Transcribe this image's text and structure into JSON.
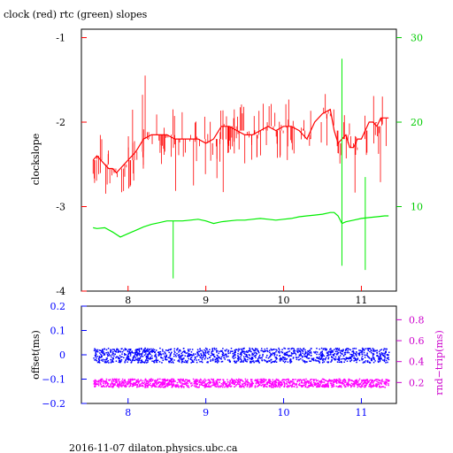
{
  "title": "clock (red) rtc (green) slopes",
  "footer": "2016-11-07 dilaton.physics.ubc.ca",
  "colors": {
    "clock": "#ff0000",
    "rtc": "#00ee00",
    "offset": "#0000ff",
    "rnd": "#ff00ff",
    "axis_red": "#ff0000",
    "axis_green": "#00cc00",
    "axis_blue": "#0000ff",
    "axis_magenta": "#cc00cc"
  },
  "chart_data": [
    {
      "type": "line",
      "ylabel": "clockslope",
      "xlim": [
        7.4,
        11.45
      ],
      "ylim": [
        -4,
        -0.9
      ],
      "y2lim": [
        0,
        31
      ],
      "xticks": [
        "8",
        "9",
        "10",
        "11"
      ],
      "xtick_values": [
        8,
        9,
        10,
        11
      ],
      "yticks": [
        "-1",
        "-2",
        "-3",
        "-4"
      ],
      "ytick_values": [
        -1,
        -2,
        -3,
        -4
      ],
      "y2ticks": [
        "30",
        "20",
        "10"
      ],
      "y2tick_values": [
        30,
        20,
        10
      ],
      "series": [
        {
          "axis": "left",
          "x": [
            7.55,
            7.6,
            7.65,
            7.7,
            7.75,
            7.8,
            7.85,
            7.9,
            7.95,
            8.0,
            8.1,
            8.2,
            8.3,
            8.4,
            8.5,
            8.6,
            8.7,
            8.8,
            8.9,
            9.0,
            9.1,
            9.2,
            9.3,
            9.4,
            9.5,
            9.6,
            9.7,
            9.8,
            9.9,
            10.0,
            10.1,
            10.2,
            10.3,
            10.4,
            10.5,
            10.6,
            10.65,
            10.7,
            10.75,
            10.8,
            10.85,
            10.9,
            10.95,
            11.0,
            11.05,
            11.1,
            11.15,
            11.2,
            11.25,
            11.3,
            11.35
          ],
          "values": [
            -2.45,
            -2.4,
            -2.45,
            -2.5,
            -2.55,
            -2.55,
            -2.6,
            -2.55,
            -2.5,
            -2.45,
            -2.35,
            -2.2,
            -2.15,
            -2.15,
            -2.15,
            -2.2,
            -2.2,
            -2.2,
            -2.2,
            -2.25,
            -2.2,
            -2.05,
            -2.05,
            -2.1,
            -2.15,
            -2.15,
            -2.1,
            -2.05,
            -2.1,
            -2.05,
            -2.05,
            -2.1,
            -2.2,
            -2.0,
            -1.9,
            -1.85,
            -2.1,
            -2.25,
            -2.2,
            -2.15,
            -2.3,
            -2.3,
            -2.2,
            -2.2,
            -2.1,
            -2.0,
            -2.0,
            -2.05,
            -1.95,
            -1.95,
            -1.95
          ]
        },
        {
          "axis": "right",
          "x": [
            7.55,
            7.6,
            7.7,
            7.8,
            7.9,
            8.0,
            8.1,
            8.2,
            8.3,
            8.4,
            8.5,
            8.6,
            8.7,
            8.8,
            8.9,
            9.0,
            9.1,
            9.2,
            9.3,
            9.4,
            9.5,
            9.6,
            9.7,
            9.8,
            9.9,
            10.0,
            10.1,
            10.2,
            10.3,
            10.4,
            10.5,
            10.6,
            10.65,
            10.7,
            10.75,
            10.8,
            10.9,
            11.0,
            11.1,
            11.2,
            11.3,
            11.35
          ],
          "values": [
            7.5,
            7.4,
            7.5,
            7.0,
            6.4,
            6.8,
            7.2,
            7.6,
            7.9,
            8.1,
            8.3,
            8.3,
            8.3,
            8.4,
            8.5,
            8.3,
            8.0,
            8.2,
            8.3,
            8.4,
            8.4,
            8.5,
            8.6,
            8.5,
            8.4,
            8.5,
            8.6,
            8.8,
            8.9,
            9.0,
            9.1,
            9.3,
            9.3,
            8.9,
            8.0,
            8.2,
            8.4,
            8.6,
            8.7,
            8.8,
            8.9,
            8.9
          ]
        }
      ]
    },
    {
      "type": "scatter",
      "ylabel": "offset(ms)",
      "y2label": "rnd−trip(ms)",
      "xlim": [
        7.4,
        11.45
      ],
      "ylim": [
        -0.2,
        0.2
      ],
      "y2lim": [
        0.0,
        0.93
      ],
      "xticks": [
        "8",
        "9",
        "10",
        "11"
      ],
      "xtick_values": [
        8,
        9,
        10,
        11
      ],
      "yticks": [
        "0.2",
        "0.1",
        "0",
        "−0.1",
        "−0.2"
      ],
      "ytick_values": [
        0.2,
        0.1,
        0,
        -0.1,
        -0.2
      ],
      "y2ticks": [
        "0.8",
        "0.6",
        "0.4",
        "0.2"
      ],
      "y2tick_values": [
        0.8,
        0.6,
        0.4,
        0.2
      ],
      "series": [
        {
          "axis": "left",
          "x_range": [
            7.55,
            11.35
          ],
          "center": 0.0,
          "spread": 0.03
        },
        {
          "axis": "right",
          "x_range": [
            7.55,
            11.35
          ],
          "center": 0.2,
          "spread": 0.04
        }
      ]
    }
  ]
}
